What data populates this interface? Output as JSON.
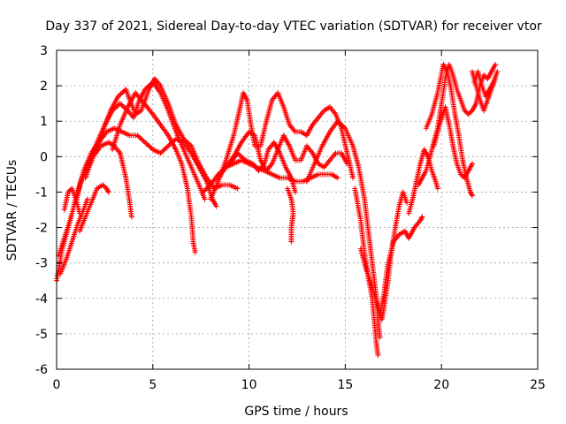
{
  "chart_data": {
    "type": "scatter",
    "title": "Day 337 of 2021, Sidereal Day-to-day VTEC variation (SDTVAR) for receiver vtor",
    "xlabel": "GPS time / hours",
    "ylabel": "SDTVAR / TECUs",
    "xlim": [
      0,
      25
    ],
    "ylim": [
      -6,
      3
    ],
    "xticks": [
      "0",
      "5",
      "10",
      "15",
      "20",
      "25"
    ],
    "yticks": [
      "-6",
      "-5",
      "-4",
      "-3",
      "-2",
      "-1",
      "0",
      "1",
      "2",
      "3"
    ],
    "grid": true,
    "marker": "plus",
    "color": "#ff0000",
    "tracks": [
      [
        [
          0.0,
          -3.5
        ],
        [
          0.3,
          -2.6
        ],
        [
          0.6,
          -2.0
        ],
        [
          0.9,
          -1.4
        ],
        [
          1.2,
          -0.8
        ],
        [
          1.6,
          -0.3
        ],
        [
          2.0,
          0.2
        ],
        [
          2.4,
          0.7
        ],
        [
          2.8,
          1.3
        ],
        [
          3.2,
          1.7
        ],
        [
          3.6,
          1.9
        ],
        [
          3.8,
          1.6
        ],
        [
          4.1,
          1.2
        ],
        [
          4.4,
          1.3
        ],
        [
          4.8,
          1.9
        ],
        [
          5.1,
          2.2
        ],
        [
          5.4,
          2.0
        ],
        [
          5.8,
          1.5
        ],
        [
          6.2,
          0.9
        ],
        [
          6.6,
          0.5
        ],
        [
          7.0,
          0.3
        ],
        [
          7.4,
          -0.2
        ],
        [
          7.8,
          -0.6
        ],
        [
          8.2,
          -0.9
        ],
        [
          8.6,
          -0.8
        ],
        [
          9.0,
          -0.8
        ],
        [
          9.4,
          -0.9
        ]
      ],
      [
        [
          0.1,
          -2.8
        ],
        [
          0.4,
          -2.3
        ],
        [
          0.7,
          -1.8
        ],
        [
          1.0,
          -1.2
        ],
        [
          1.3,
          -0.6
        ],
        [
          1.7,
          -0.1
        ],
        [
          2.1,
          0.4
        ],
        [
          2.5,
          0.9
        ],
        [
          2.9,
          1.3
        ],
        [
          3.3,
          1.5
        ],
        [
          3.7,
          1.3
        ],
        [
          4.0,
          1.1
        ],
        [
          4.3,
          1.6
        ],
        [
          4.6,
          1.9
        ],
        [
          5.0,
          2.1
        ],
        [
          5.4,
          1.8
        ],
        [
          5.8,
          1.3
        ],
        [
          6.2,
          0.7
        ],
        [
          6.6,
          0.2
        ],
        [
          7.0,
          -0.3
        ],
        [
          7.4,
          -0.8
        ],
        [
          7.7,
          -1.2
        ]
      ],
      [
        [
          1.0,
          -1.3
        ],
        [
          1.4,
          -0.4
        ],
        [
          1.8,
          0.1
        ],
        [
          2.2,
          0.4
        ],
        [
          2.6,
          0.7
        ],
        [
          3.0,
          0.8
        ],
        [
          3.4,
          0.7
        ],
        [
          3.8,
          0.6
        ],
        [
          4.2,
          0.6
        ],
        [
          4.6,
          0.4
        ],
        [
          5.0,
          0.2
        ],
        [
          5.4,
          0.1
        ],
        [
          5.8,
          0.3
        ],
        [
          6.2,
          0.5
        ],
        [
          6.6,
          0.4
        ],
        [
          7.0,
          0.1
        ],
        [
          7.4,
          -0.3
        ],
        [
          7.8,
          -0.7
        ],
        [
          8.1,
          -1.2
        ],
        [
          8.3,
          -1.4
        ]
      ],
      [
        [
          1.5,
          -0.6
        ],
        [
          1.9,
          0.0
        ],
        [
          2.3,
          0.3
        ],
        [
          2.7,
          0.4
        ],
        [
          3.0,
          0.3
        ],
        [
          3.3,
          0.1
        ],
        [
          3.6,
          -0.6
        ],
        [
          3.8,
          -1.3
        ],
        [
          3.9,
          -1.7
        ]
      ],
      [
        [
          0.2,
          -3.3
        ],
        [
          0.5,
          -2.9
        ],
        [
          0.8,
          -2.4
        ],
        [
          1.1,
          -1.9
        ],
        [
          1.4,
          -1.5
        ],
        [
          1.6,
          -1.2
        ]
      ],
      [
        [
          0.4,
          -1.5
        ],
        [
          0.6,
          -1.0
        ],
        [
          0.8,
          -0.9
        ],
        [
          1.0,
          -1.2
        ],
        [
          1.2,
          -1.6
        ]
      ],
      [
        [
          1.2,
          -2.1
        ],
        [
          1.5,
          -1.7
        ],
        [
          1.8,
          -1.3
        ],
        [
          2.1,
          -0.9
        ],
        [
          2.4,
          -0.8
        ],
        [
          2.6,
          -0.9
        ],
        [
          2.7,
          -1.0
        ]
      ],
      [
        [
          2.9,
          0.2
        ],
        [
          3.3,
          0.9
        ],
        [
          3.7,
          1.4
        ],
        [
          4.1,
          1.8
        ],
        [
          4.4,
          1.6
        ],
        [
          4.7,
          1.4
        ],
        [
          5.0,
          1.2
        ],
        [
          5.4,
          0.9
        ],
        [
          5.8,
          0.6
        ],
        [
          6.2,
          0.2
        ],
        [
          6.5,
          -0.2
        ],
        [
          6.8,
          -0.9
        ],
        [
          7.0,
          -1.7
        ],
        [
          7.1,
          -2.4
        ],
        [
          7.2,
          -2.7
        ]
      ],
      [
        [
          7.6,
          -1.0
        ],
        [
          8.0,
          -0.8
        ],
        [
          8.4,
          -0.5
        ],
        [
          8.8,
          -0.3
        ],
        [
          9.2,
          -0.2
        ],
        [
          9.6,
          -0.1
        ],
        [
          10.0,
          -0.2
        ],
        [
          10.4,
          -0.3
        ],
        [
          10.8,
          -0.4
        ],
        [
          11.2,
          -0.5
        ],
        [
          11.6,
          -0.6
        ],
        [
          12.0,
          -0.6
        ],
        [
          12.4,
          -0.7
        ],
        [
          12.8,
          -0.7
        ],
        [
          13.2,
          -0.6
        ],
        [
          13.6,
          -0.5
        ],
        [
          14.0,
          -0.5
        ],
        [
          14.3,
          -0.5
        ],
        [
          14.6,
          -0.6
        ]
      ],
      [
        [
          8.0,
          -1.2
        ],
        [
          8.4,
          -0.7
        ],
        [
          8.8,
          -0.1
        ],
        [
          9.2,
          0.6
        ],
        [
          9.5,
          1.3
        ],
        [
          9.7,
          1.8
        ],
        [
          9.9,
          1.6
        ],
        [
          10.1,
          0.9
        ],
        [
          10.3,
          0.3
        ],
        [
          10.6,
          0.3
        ],
        [
          10.9,
          1.0
        ],
        [
          11.2,
          1.6
        ],
        [
          11.5,
          1.8
        ],
        [
          11.8,
          1.4
        ],
        [
          12.1,
          0.9
        ],
        [
          12.4,
          0.7
        ],
        [
          12.7,
          0.7
        ],
        [
          13.0,
          0.6
        ],
        [
          13.3,
          0.9
        ],
        [
          13.6,
          1.1
        ],
        [
          13.9,
          1.3
        ],
        [
          14.2,
          1.4
        ],
        [
          14.5,
          1.2
        ],
        [
          14.8,
          0.8
        ],
        [
          15.1,
          0.1
        ],
        [
          15.4,
          -0.6
        ]
      ],
      [
        [
          8.4,
          -0.6
        ],
        [
          8.8,
          -0.3
        ],
        [
          9.2,
          0.0
        ],
        [
          9.6,
          0.4
        ],
        [
          10.0,
          0.7
        ],
        [
          10.3,
          0.6
        ],
        [
          10.6,
          -0.1
        ],
        [
          10.9,
          -0.4
        ],
        [
          11.2,
          -0.2
        ],
        [
          11.5,
          0.2
        ],
        [
          11.8,
          0.6
        ],
        [
          12.1,
          0.3
        ],
        [
          12.4,
          -0.1
        ],
        [
          12.7,
          -0.1
        ],
        [
          13.0,
          0.3
        ],
        [
          13.3,
          0.1
        ],
        [
          13.6,
          -0.2
        ],
        [
          13.9,
          -0.3
        ],
        [
          14.2,
          -0.1
        ],
        [
          14.5,
          0.1
        ],
        [
          14.8,
          0.1
        ],
        [
          15.1,
          -0.2
        ]
      ],
      [
        [
          9.0,
          -0.2
        ],
        [
          9.4,
          0.1
        ],
        [
          9.8,
          -0.1
        ],
        [
          10.2,
          -0.2
        ],
        [
          10.5,
          -0.4
        ],
        [
          10.8,
          -0.2
        ],
        [
          11.0,
          0.2
        ],
        [
          11.3,
          0.4
        ],
        [
          11.6,
          0.1
        ],
        [
          11.9,
          -0.3
        ],
        [
          12.2,
          -0.6
        ],
        [
          12.4,
          -1.0
        ]
      ],
      [
        [
          12.0,
          -0.9
        ],
        [
          12.2,
          -1.2
        ],
        [
          12.3,
          -1.6
        ],
        [
          12.2,
          -2.0
        ],
        [
          12.2,
          -2.4
        ]
      ],
      [
        [
          13.0,
          -0.7
        ],
        [
          13.4,
          -0.2
        ],
        [
          13.8,
          0.3
        ],
        [
          14.2,
          0.7
        ],
        [
          14.6,
          1.0
        ],
        [
          15.0,
          0.8
        ],
        [
          15.4,
          0.3
        ],
        [
          15.7,
          -0.3
        ],
        [
          16.0,
          -1.2
        ],
        [
          16.2,
          -2.1
        ],
        [
          16.4,
          -3.0
        ],
        [
          16.6,
          -3.9
        ],
        [
          16.7,
          -4.6
        ],
        [
          16.8,
          -5.1
        ]
      ],
      [
        [
          15.5,
          -0.9
        ],
        [
          15.8,
          -1.8
        ],
        [
          16.0,
          -2.7
        ],
        [
          16.2,
          -3.4
        ],
        [
          16.4,
          -4.0
        ],
        [
          16.5,
          -4.6
        ],
        [
          16.6,
          -5.2
        ],
        [
          16.7,
          -5.6
        ]
      ],
      [
        [
          15.8,
          -2.6
        ],
        [
          16.1,
          -3.2
        ],
        [
          16.4,
          -3.7
        ],
        [
          16.7,
          -4.2
        ],
        [
          16.9,
          -4.6
        ],
        [
          17.0,
          -4.3
        ],
        [
          17.2,
          -3.6
        ],
        [
          17.4,
          -2.7
        ],
        [
          17.6,
          -2.0
        ],
        [
          17.8,
          -1.4
        ],
        [
          18.0,
          -1.0
        ],
        [
          18.2,
          -1.3
        ]
      ],
      [
        [
          16.8,
          -4.5
        ],
        [
          17.0,
          -3.9
        ],
        [
          17.2,
          -3.1
        ],
        [
          17.5,
          -2.4
        ],
        [
          17.8,
          -2.2
        ],
        [
          18.1,
          -2.1
        ],
        [
          18.3,
          -2.3
        ],
        [
          18.6,
          -2.0
        ],
        [
          18.9,
          -1.8
        ],
        [
          19.0,
          -1.7
        ]
      ],
      [
        [
          18.3,
          -1.6
        ],
        [
          18.5,
          -1.2
        ],
        [
          18.7,
          -0.7
        ],
        [
          18.9,
          -0.2
        ],
        [
          19.1,
          0.2
        ],
        [
          19.3,
          0.0
        ],
        [
          19.5,
          -0.4
        ],
        [
          19.7,
          -0.7
        ],
        [
          19.8,
          -0.9
        ]
      ],
      [
        [
          18.8,
          -0.8
        ],
        [
          19.2,
          -0.4
        ],
        [
          19.5,
          0.2
        ],
        [
          19.8,
          0.8
        ],
        [
          20.0,
          1.5
        ],
        [
          20.2,
          2.2
        ],
        [
          20.4,
          2.6
        ],
        [
          20.6,
          2.3
        ],
        [
          20.8,
          1.9
        ],
        [
          21.0,
          1.6
        ],
        [
          21.2,
          1.3
        ],
        [
          21.4,
          1.2
        ],
        [
          21.6,
          1.3
        ],
        [
          21.8,
          1.5
        ],
        [
          22.0,
          2.0
        ],
        [
          22.2,
          2.3
        ],
        [
          22.4,
          2.2
        ],
        [
          22.6,
          2.4
        ],
        [
          22.8,
          2.6
        ]
      ],
      [
        [
          19.2,
          0.8
        ],
        [
          19.5,
          1.2
        ],
        [
          19.8,
          1.8
        ],
        [
          20.1,
          2.6
        ],
        [
          20.3,
          2.4
        ],
        [
          20.5,
          1.9
        ],
        [
          20.7,
          1.2
        ],
        [
          20.9,
          0.6
        ],
        [
          21.1,
          -0.1
        ],
        [
          21.3,
          -0.6
        ],
        [
          21.5,
          -1.0
        ],
        [
          21.6,
          -1.1
        ]
      ],
      [
        [
          19.6,
          0.3
        ],
        [
          19.9,
          0.9
        ],
        [
          20.2,
          1.4
        ],
        [
          20.4,
          0.9
        ],
        [
          20.6,
          0.3
        ],
        [
          20.8,
          -0.2
        ],
        [
          21.0,
          -0.5
        ],
        [
          21.2,
          -0.6
        ],
        [
          21.4,
          -0.4
        ],
        [
          21.6,
          -0.2
        ]
      ],
      [
        [
          21.6,
          2.4
        ],
        [
          21.8,
          2.0
        ],
        [
          22.0,
          1.6
        ],
        [
          22.2,
          1.3
        ],
        [
          22.4,
          1.6
        ],
        [
          22.6,
          1.9
        ],
        [
          22.8,
          2.2
        ]
      ],
      [
        [
          21.7,
          2.1
        ],
        [
          21.9,
          2.4
        ],
        [
          22.1,
          2.0
        ],
        [
          22.3,
          1.7
        ],
        [
          22.5,
          1.9
        ],
        [
          22.7,
          2.1
        ],
        [
          22.9,
          2.4
        ]
      ]
    ]
  }
}
